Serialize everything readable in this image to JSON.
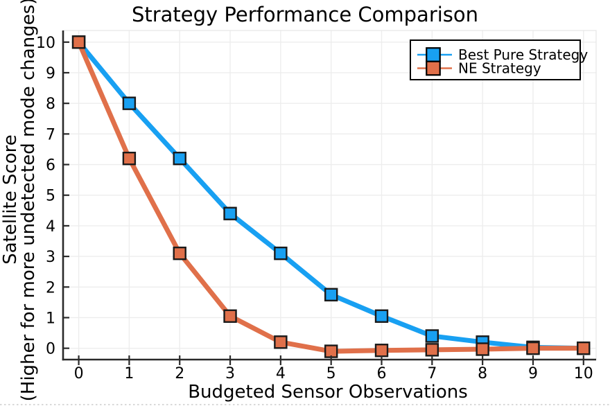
{
  "page": {
    "background": "#ffffff",
    "bottom_dashed_border_color": "#cccccc"
  },
  "chart_data": {
    "type": "line",
    "title": "Strategy Performance Comparison",
    "xlabel": "Budgeted Sensor Observations",
    "ylabel_line1": "Satellite Score",
    "ylabel_line2": "(Higher for more undetected mode changes)",
    "x": [
      0,
      1,
      2,
      3,
      4,
      5,
      6,
      7,
      8,
      9,
      10
    ],
    "series": [
      {
        "name": "Best Pure Strategy",
        "color": "#18a0f2",
        "values": [
          10.0,
          8.0,
          6.2,
          4.4,
          3.1,
          1.75,
          1.05,
          0.4,
          0.2,
          0.03,
          0.0
        ]
      },
      {
        "name": "NE Strategy",
        "color": "#e0704a",
        "values": [
          10.0,
          6.2,
          3.1,
          1.05,
          0.2,
          -0.1,
          -0.07,
          -0.05,
          -0.03,
          0.0,
          0.0
        ]
      }
    ],
    "xticks": [
      0,
      1,
      2,
      3,
      4,
      5,
      6,
      7,
      8,
      9,
      10
    ],
    "yticks": [
      0,
      1,
      2,
      3,
      4,
      5,
      6,
      7,
      8,
      9,
      10
    ],
    "xlim": [
      -0.31,
      10.25
    ],
    "ylim": [
      -0.37,
      10.38
    ],
    "grid": true,
    "marker": "square",
    "legend_position": "top-right",
    "marker_stroke": "#1a1a1a",
    "axis_color": "#2a2a2a",
    "grid_color": "#ededed",
    "frame_color": "#e7e7e7",
    "legend_border_color": "#000000",
    "legend_background": "#ffffff",
    "text_color": "#000000"
  }
}
